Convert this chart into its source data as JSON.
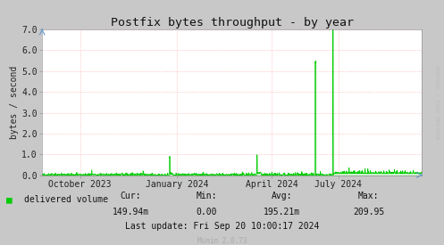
{
  "title": "Postfix bytes throughput - by year",
  "ylabel": "bytes / second",
  "bg_color": "#c8c8c8",
  "plot_bg_color": "#ffffff",
  "line_color": "#00cc00",
  "grid_color": "#ff9999",
  "ylim": [
    0.0,
    7.0
  ],
  "legend_label": "delivered volume",
  "legend_color": "#00cc00",
  "stats_cur": "149.94m",
  "stats_min": "0.00",
  "stats_avg": "195.21m",
  "stats_max": "209.95",
  "last_update": "Last update: Fri Sep 20 10:00:17 2024",
  "munin_version": "Munin 2.0.73",
  "watermark": "RRDTOOL / TOBI OETIKER",
  "xtick_labels": [
    "October 2023",
    "January 2024",
    "April 2024",
    "July 2024"
  ],
  "xtick_positions": [
    0.1,
    0.355,
    0.605,
    0.78
  ],
  "title_fontsize": 9.5,
  "axis_fontsize": 7,
  "tick_fontsize": 7,
  "stats_fontsize": 7,
  "munin_fontsize": 5.5
}
